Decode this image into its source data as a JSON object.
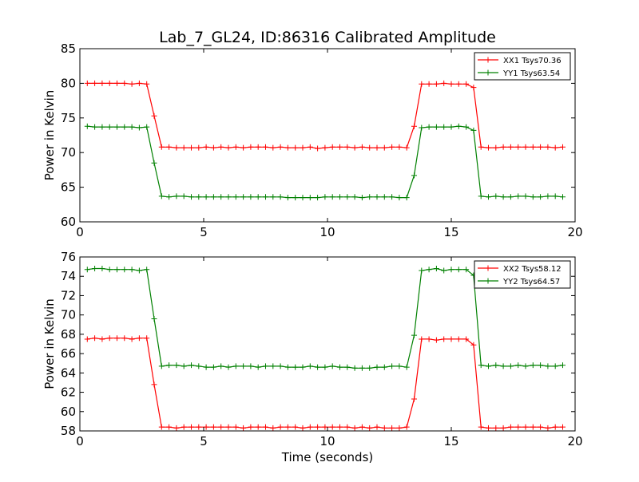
{
  "figure": {
    "title": "Lab_7_GL24, ID:86316 Calibrated Amplitude",
    "background": "#ffffff"
  },
  "chart_data": [
    {
      "type": "line",
      "title": "Lab_7_GL24, ID:86316 Calibrated Amplitude",
      "xlabel": "",
      "ylabel": "Power in Kelvin",
      "xlim": [
        0,
        20
      ],
      "ylim": [
        60,
        85
      ],
      "xticks": [
        0,
        5,
        10,
        15,
        20
      ],
      "yticks": [
        60,
        65,
        70,
        75,
        80,
        85
      ],
      "grid": false,
      "legend_position": "top-right",
      "marker": "+",
      "x": [
        0.3,
        0.6,
        0.9,
        1.2,
        1.5,
        1.8,
        2.1,
        2.4,
        2.7,
        3.0,
        3.3,
        3.6,
        3.9,
        4.2,
        4.5,
        4.8,
        5.1,
        5.4,
        5.7,
        6.0,
        6.3,
        6.6,
        6.9,
        7.2,
        7.5,
        7.8,
        8.1,
        8.4,
        8.7,
        9.0,
        9.3,
        9.6,
        9.9,
        10.2,
        10.5,
        10.8,
        11.1,
        11.4,
        11.7,
        12.0,
        12.3,
        12.6,
        12.9,
        13.2,
        13.5,
        13.8,
        14.1,
        14.4,
        14.7,
        15.0,
        15.3,
        15.6,
        15.9,
        16.2,
        16.5,
        16.8,
        17.1,
        17.4,
        17.7,
        18.0,
        18.3,
        18.6,
        18.9,
        19.2,
        19.5
      ],
      "series": [
        {
          "name": "XX1 Tsys70.36",
          "color": "#ff0000",
          "values": [
            80,
            80,
            80,
            80,
            80,
            80,
            79.9,
            80,
            79.9,
            75.3,
            70.8,
            70.8,
            70.7,
            70.7,
            70.7,
            70.7,
            70.8,
            70.7,
            70.8,
            70.7,
            70.8,
            70.7,
            70.8,
            70.8,
            70.8,
            70.7,
            70.8,
            70.7,
            70.7,
            70.7,
            70.8,
            70.6,
            70.7,
            70.8,
            70.8,
            70.8,
            70.7,
            70.8,
            70.7,
            70.7,
            70.7,
            70.8,
            70.8,
            70.7,
            73.8,
            79.9,
            79.9,
            79.9,
            80,
            79.9,
            79.9,
            79.9,
            79.4,
            70.8,
            70.7,
            70.7,
            70.8,
            70.8,
            70.8,
            70.8,
            70.8,
            70.8,
            70.8,
            70.7,
            70.8
          ]
        },
        {
          "name": "YY1 Tsys63.54",
          "color": "#008000",
          "values": [
            73.8,
            73.7,
            73.7,
            73.7,
            73.7,
            73.7,
            73.7,
            73.6,
            73.7,
            68.5,
            63.7,
            63.6,
            63.7,
            63.7,
            63.6,
            63.6,
            63.6,
            63.6,
            63.6,
            63.6,
            63.6,
            63.6,
            63.6,
            63.6,
            63.6,
            63.6,
            63.6,
            63.5,
            63.5,
            63.5,
            63.5,
            63.5,
            63.6,
            63.6,
            63.6,
            63.6,
            63.6,
            63.5,
            63.6,
            63.6,
            63.6,
            63.6,
            63.5,
            63.5,
            66.7,
            73.6,
            73.7,
            73.7,
            73.7,
            73.7,
            73.8,
            73.7,
            73.2,
            63.7,
            63.6,
            63.7,
            63.6,
            63.6,
            63.7,
            63.7,
            63.6,
            63.6,
            63.7,
            63.7,
            63.6
          ]
        }
      ]
    },
    {
      "type": "line",
      "title": "",
      "xlabel": "Time (seconds)",
      "ylabel": "Power in Kelvin",
      "xlim": [
        0,
        20
      ],
      "ylim": [
        58,
        76
      ],
      "xticks": [
        0,
        5,
        10,
        15,
        20
      ],
      "yticks": [
        58,
        60,
        62,
        64,
        66,
        68,
        70,
        72,
        74,
        76
      ],
      "grid": false,
      "legend_position": "top-right",
      "marker": "+",
      "x": [
        0.3,
        0.6,
        0.9,
        1.2,
        1.5,
        1.8,
        2.1,
        2.4,
        2.7,
        3.0,
        3.3,
        3.6,
        3.9,
        4.2,
        4.5,
        4.8,
        5.1,
        5.4,
        5.7,
        6.0,
        6.3,
        6.6,
        6.9,
        7.2,
        7.5,
        7.8,
        8.1,
        8.4,
        8.7,
        9.0,
        9.3,
        9.6,
        9.9,
        10.2,
        10.5,
        10.8,
        11.1,
        11.4,
        11.7,
        12.0,
        12.3,
        12.6,
        12.9,
        13.2,
        13.5,
        13.8,
        14.1,
        14.4,
        14.7,
        15.0,
        15.3,
        15.6,
        15.9,
        16.2,
        16.5,
        16.8,
        17.1,
        17.4,
        17.7,
        18.0,
        18.3,
        18.6,
        18.9,
        19.2,
        19.5
      ],
      "series": [
        {
          "name": "XX2 Tsys58.12",
          "color": "#ff0000",
          "values": [
            67.5,
            67.6,
            67.5,
            67.6,
            67.6,
            67.6,
            67.5,
            67.6,
            67.6,
            62.8,
            58.4,
            58.4,
            58.3,
            58.4,
            58.4,
            58.4,
            58.4,
            58.4,
            58.4,
            58.4,
            58.4,
            58.3,
            58.4,
            58.4,
            58.4,
            58.3,
            58.4,
            58.4,
            58.4,
            58.3,
            58.4,
            58.4,
            58.4,
            58.4,
            58.4,
            58.4,
            58.3,
            58.4,
            58.3,
            58.4,
            58.3,
            58.3,
            58.3,
            58.4,
            61.3,
            67.5,
            67.5,
            67.4,
            67.5,
            67.5,
            67.5,
            67.5,
            66.9,
            58.4,
            58.3,
            58.3,
            58.3,
            58.4,
            58.4,
            58.4,
            58.4,
            58.4,
            58.3,
            58.4,
            58.4
          ]
        },
        {
          "name": "YY2 Tsys64.57",
          "color": "#008000",
          "values": [
            74.7,
            74.8,
            74.8,
            74.7,
            74.7,
            74.7,
            74.7,
            74.6,
            74.7,
            69.6,
            64.7,
            64.8,
            64.8,
            64.7,
            64.8,
            64.7,
            64.6,
            64.6,
            64.7,
            64.6,
            64.7,
            64.7,
            64.7,
            64.6,
            64.7,
            64.7,
            64.7,
            64.6,
            64.6,
            64.6,
            64.7,
            64.6,
            64.6,
            64.7,
            64.6,
            64.6,
            64.5,
            64.5,
            64.5,
            64.6,
            64.6,
            64.7,
            64.7,
            64.6,
            67.9,
            74.6,
            74.7,
            74.8,
            74.6,
            74.7,
            74.7,
            74.7,
            74.1,
            64.8,
            64.7,
            64.8,
            64.7,
            64.7,
            64.8,
            64.7,
            64.8,
            64.8,
            64.7,
            64.7,
            64.8
          ]
        }
      ]
    }
  ]
}
